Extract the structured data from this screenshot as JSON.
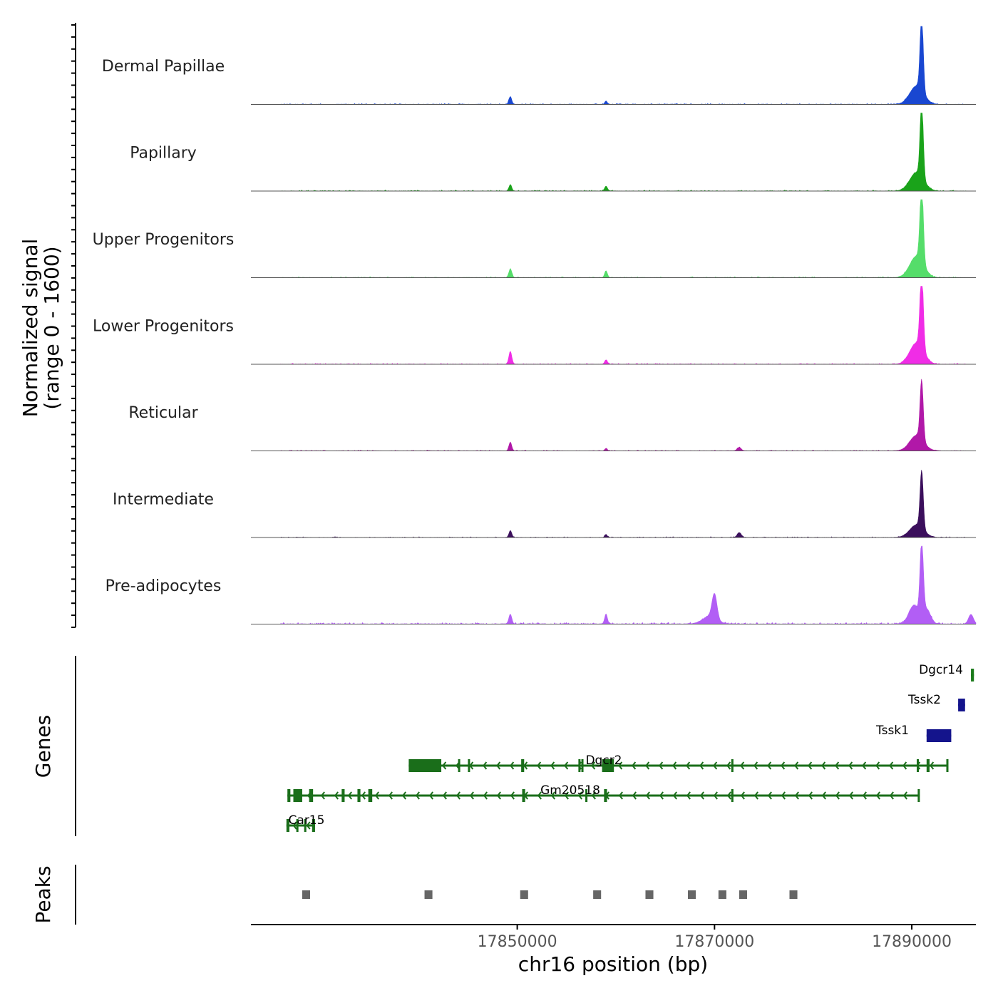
{
  "chart_data": {
    "type": "area",
    "title": "",
    "chromosome": "chr16",
    "x_axis": {
      "label": "chr16 position (bp)",
      "range": [
        17823000,
        17896500
      ],
      "ticks": [
        17850000,
        17870000,
        17890000
      ],
      "tick_labels": [
        "17850000",
        "17870000",
        "17890000"
      ]
    },
    "y_axis": {
      "label_line1": "Normalized signal",
      "label_line2": "(range 0 - 1600)",
      "range": [
        0,
        1600
      ]
    },
    "panel_labels": {
      "genes": "Genes",
      "peaks": "Peaks"
    },
    "series": [
      {
        "name": "Dermal Papillae",
        "color": "#1947d1",
        "peaks": [
          [
            17849300,
            160,
            140
          ],
          [
            17859000,
            70,
            120
          ],
          [
            17891000,
            1560,
            160
          ],
          [
            17890500,
            380,
            700
          ]
        ],
        "noise": 12
      },
      {
        "name": "Papillary",
        "color": "#1aa31a",
        "peaks": [
          [
            17849300,
            130,
            140
          ],
          [
            17859000,
            100,
            140
          ],
          [
            17891000,
            1560,
            160
          ],
          [
            17890500,
            380,
            700
          ]
        ],
        "noise": 12
      },
      {
        "name": "Upper Progenitors",
        "color": "#55dd6a",
        "peaks": [
          [
            17849300,
            180,
            150
          ],
          [
            17859000,
            140,
            140
          ],
          [
            17891000,
            1600,
            170
          ],
          [
            17890500,
            440,
            700
          ]
        ],
        "noise": 12
      },
      {
        "name": "Lower Progenitors",
        "color": "#f02ce6",
        "peaks": [
          [
            17849300,
            260,
            150
          ],
          [
            17859000,
            90,
            140
          ],
          [
            17891000,
            1600,
            170
          ],
          [
            17890500,
            440,
            700
          ]
        ],
        "noise": 12
      },
      {
        "name": "Reticular",
        "color": "#b118a8",
        "peaks": [
          [
            17849300,
            180,
            140
          ],
          [
            17859000,
            50,
            120
          ],
          [
            17872500,
            70,
            200
          ],
          [
            17891000,
            1220,
            160
          ],
          [
            17890500,
            320,
            700
          ]
        ],
        "noise": 10
      },
      {
        "name": "Intermediate",
        "color": "#3b0f5c",
        "peaks": [
          [
            17849300,
            140,
            140
          ],
          [
            17859000,
            60,
            120
          ],
          [
            17872500,
            100,
            200
          ],
          [
            17891000,
            1180,
            160
          ],
          [
            17890500,
            260,
            700
          ]
        ],
        "noise": 10
      },
      {
        "name": "Pre-adipocytes",
        "color": "#b25ef5",
        "peaks": [
          [
            17849300,
            200,
            150
          ],
          [
            17859000,
            200,
            140
          ],
          [
            17870000,
            500,
            250
          ],
          [
            17869500,
            160,
            700
          ],
          [
            17891000,
            1480,
            170
          ],
          [
            17890200,
            380,
            500
          ],
          [
            17891500,
            300,
            400
          ],
          [
            17896000,
            200,
            250
          ]
        ],
        "noise": 22
      }
    ],
    "genes": [
      {
        "name": "Dgcr14",
        "color": "#1a7a1a",
        "row": 0,
        "start": 17896000,
        "end": 17896300,
        "strand": "-",
        "exons": [
          [
            17896000,
            17896300
          ]
        ]
      },
      {
        "name": "Tssk2",
        "color": "#14148c",
        "row": 1,
        "start": 17894700,
        "end": 17895400,
        "strand": "+",
        "exons": [
          [
            17894700,
            17895400
          ]
        ]
      },
      {
        "name": "Tssk1",
        "color": "#14148c",
        "row": 2,
        "start": 17891500,
        "end": 17894000,
        "strand": "+",
        "exons": [
          [
            17891500,
            17894000
          ]
        ]
      },
      {
        "name": "Dgcr2",
        "color": "#1a6e1a",
        "row": 3,
        "start": 17839000,
        "end": 17893600,
        "strand": "-",
        "exons": [
          [
            17839000,
            17842300
          ],
          [
            17844000,
            17844200
          ],
          [
            17845000,
            17845200
          ],
          [
            17850400,
            17850700
          ],
          [
            17856200,
            17856400
          ],
          [
            17856500,
            17856700
          ],
          [
            17858600,
            17859800
          ],
          [
            17871700,
            17871900
          ],
          [
            17890500,
            17890700
          ],
          [
            17891500,
            17891800
          ],
          [
            17893500,
            17893700
          ]
        ]
      },
      {
        "name": "Gm20518",
        "color": "#1a6e1a",
        "row": 4,
        "start": 17826700,
        "end": 17890800,
        "strand": "-",
        "exons": [
          [
            17826700,
            17827000
          ],
          [
            17827300,
            17828200
          ],
          [
            17828900,
            17829300
          ],
          [
            17832200,
            17832500
          ],
          [
            17833800,
            17834100
          ],
          [
            17834900,
            17835300
          ],
          [
            17850500,
            17850800
          ],
          [
            17856900,
            17857100
          ],
          [
            17858800,
            17859100
          ],
          [
            17871700,
            17871900
          ],
          [
            17890600,
            17890800
          ]
        ]
      },
      {
        "name": "Car15",
        "color": "#1a6e1a",
        "row": 5,
        "start": 17826600,
        "end": 17829500,
        "strand": "-",
        "exons": [
          [
            17826600,
            17826900
          ],
          [
            17827600,
            17827800
          ],
          [
            17828400,
            17828600
          ],
          [
            17829200,
            17829500
          ]
        ]
      }
    ],
    "peak_regions": [
      [
        17828200,
        17829000
      ],
      [
        17840600,
        17841400
      ],
      [
        17850300,
        17851100
      ],
      [
        17857700,
        17858500
      ],
      [
        17863000,
        17863800
      ],
      [
        17867300,
        17868100
      ],
      [
        17870400,
        17871200
      ],
      [
        17872500,
        17873300
      ],
      [
        17877600,
        17878400
      ]
    ]
  }
}
